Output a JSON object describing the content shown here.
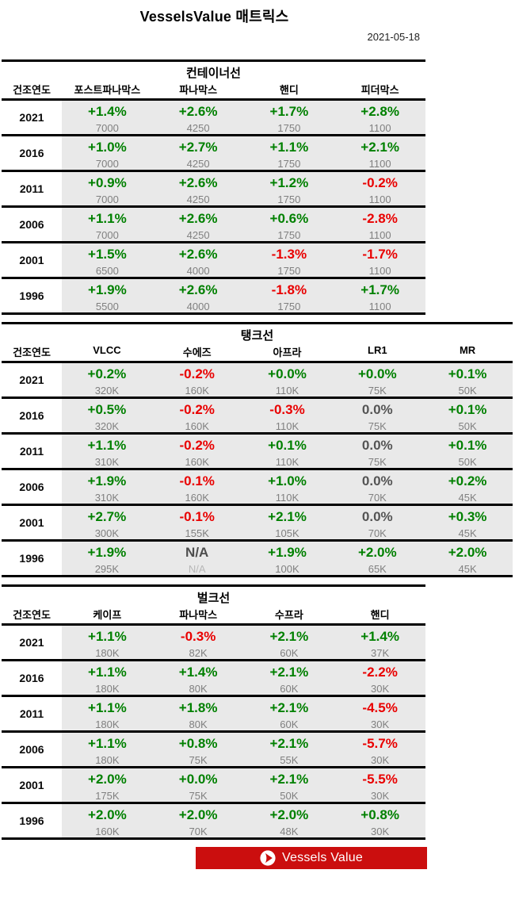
{
  "header": {
    "title": "VesselsValue 매트릭스",
    "date": "2021-05-18"
  },
  "colors": {
    "positive_green": "#008000",
    "negative_red": "#e90000",
    "zero_neutral": "#545454",
    "size_gray": "#808080",
    "na_light_gray": "#b8b8b8",
    "row_background": "#e9e9e9",
    "banner_red": "#cb0e0e"
  },
  "tables": [
    {
      "id": "container",
      "title": "컨테이너선",
      "year_label": "건조연도",
      "columns": [
        "포스트파나막스",
        "파나막스",
        "핸디",
        "피더막스"
      ],
      "rows": [
        {
          "year": "2021",
          "cells": [
            {
              "pct": "+1.4%",
              "tone": "green",
              "size": "7000"
            },
            {
              "pct": "+2.6%",
              "tone": "green",
              "size": "4250"
            },
            {
              "pct": "+1.7%",
              "tone": "green",
              "size": "1750"
            },
            {
              "pct": "+2.8%",
              "tone": "green",
              "size": "1100"
            }
          ]
        },
        {
          "year": "2016",
          "cells": [
            {
              "pct": "+1.0%",
              "tone": "green",
              "size": "7000"
            },
            {
              "pct": "+2.7%",
              "tone": "green",
              "size": "4250"
            },
            {
              "pct": "+1.1%",
              "tone": "green",
              "size": "1750"
            },
            {
              "pct": "+2.1%",
              "tone": "green",
              "size": "1100"
            }
          ]
        },
        {
          "year": "2011",
          "cells": [
            {
              "pct": "+0.9%",
              "tone": "green",
              "size": "7000"
            },
            {
              "pct": "+2.6%",
              "tone": "green",
              "size": "4250"
            },
            {
              "pct": "+1.2%",
              "tone": "green",
              "size": "1750"
            },
            {
              "pct": "-0.2%",
              "tone": "red",
              "size": "1100"
            }
          ]
        },
        {
          "year": "2006",
          "cells": [
            {
              "pct": "+1.1%",
              "tone": "green",
              "size": "7000"
            },
            {
              "pct": "+2.6%",
              "tone": "green",
              "size": "4250"
            },
            {
              "pct": "+0.6%",
              "tone": "green",
              "size": "1750"
            },
            {
              "pct": "-2.8%",
              "tone": "red",
              "size": "1100"
            }
          ]
        },
        {
          "year": "2001",
          "cells": [
            {
              "pct": "+1.5%",
              "tone": "green",
              "size": "6500"
            },
            {
              "pct": "+2.6%",
              "tone": "green",
              "size": "4000"
            },
            {
              "pct": "-1.3%",
              "tone": "red",
              "size": "1750"
            },
            {
              "pct": "-1.7%",
              "tone": "red",
              "size": "1100"
            }
          ]
        },
        {
          "year": "1996",
          "cells": [
            {
              "pct": "+1.9%",
              "tone": "green",
              "size": "5500"
            },
            {
              "pct": "+2.6%",
              "tone": "green",
              "size": "4000"
            },
            {
              "pct": "-1.8%",
              "tone": "red",
              "size": "1750"
            },
            {
              "pct": "+1.7%",
              "tone": "green",
              "size": "1100"
            }
          ]
        }
      ]
    },
    {
      "id": "tanker",
      "title": "탱크선",
      "year_label": "건조연도",
      "columns": [
        "VLCC",
        "수에즈",
        "아프라",
        "LR1",
        "MR"
      ],
      "rows": [
        {
          "year": "2021",
          "cells": [
            {
              "pct": "+0.2%",
              "tone": "green",
              "size": "320K"
            },
            {
              "pct": "-0.2%",
              "tone": "red",
              "size": "160K"
            },
            {
              "pct": "+0.0%",
              "tone": "green",
              "size": "110K"
            },
            {
              "pct": "+0.0%",
              "tone": "green",
              "size": "75K"
            },
            {
              "pct": "+0.1%",
              "tone": "green",
              "size": "50K"
            }
          ]
        },
        {
          "year": "2016",
          "cells": [
            {
              "pct": "+0.5%",
              "tone": "green",
              "size": "320K"
            },
            {
              "pct": "-0.2%",
              "tone": "red",
              "size": "160K"
            },
            {
              "pct": "-0.3%",
              "tone": "red",
              "size": "110K"
            },
            {
              "pct": "0.0%",
              "tone": "neutral",
              "size": "75K"
            },
            {
              "pct": "+0.1%",
              "tone": "green",
              "size": "50K"
            }
          ]
        },
        {
          "year": "2011",
          "cells": [
            {
              "pct": "+1.1%",
              "tone": "green",
              "size": "310K"
            },
            {
              "pct": "-0.2%",
              "tone": "red",
              "size": "160K"
            },
            {
              "pct": "+0.1%",
              "tone": "green",
              "size": "110K"
            },
            {
              "pct": "0.0%",
              "tone": "neutral",
              "size": "75K"
            },
            {
              "pct": "+0.1%",
              "tone": "green",
              "size": "50K"
            }
          ]
        },
        {
          "year": "2006",
          "cells": [
            {
              "pct": "+1.9%",
              "tone": "green",
              "size": "310K"
            },
            {
              "pct": "-0.1%",
              "tone": "red",
              "size": "160K"
            },
            {
              "pct": "+1.0%",
              "tone": "green",
              "size": "110K"
            },
            {
              "pct": "0.0%",
              "tone": "neutral",
              "size": "70K"
            },
            {
              "pct": "+0.2%",
              "tone": "green",
              "size": "45K"
            }
          ]
        },
        {
          "year": "2001",
          "cells": [
            {
              "pct": "+2.7%",
              "tone": "green",
              "size": "300K"
            },
            {
              "pct": "-0.1%",
              "tone": "red",
              "size": "155K"
            },
            {
              "pct": "+2.1%",
              "tone": "green",
              "size": "105K"
            },
            {
              "pct": "0.0%",
              "tone": "neutral",
              "size": "70K"
            },
            {
              "pct": "+0.3%",
              "tone": "green",
              "size": "45K"
            }
          ]
        },
        {
          "year": "1996",
          "cells": [
            {
              "pct": "+1.9%",
              "tone": "green",
              "size": "295K"
            },
            {
              "pct": "N/A",
              "tone": "na",
              "size": "N/A"
            },
            {
              "pct": "+1.9%",
              "tone": "green",
              "size": "100K"
            },
            {
              "pct": "+2.0%",
              "tone": "green",
              "size": "65K"
            },
            {
              "pct": "+2.0%",
              "tone": "green",
              "size": "45K"
            }
          ]
        }
      ]
    },
    {
      "id": "bulker",
      "title": "벌크선",
      "year_label": "건조연도",
      "columns": [
        "케이프",
        "파나막스",
        "수프라",
        "핸디"
      ],
      "rows": [
        {
          "year": "2021",
          "cells": [
            {
              "pct": "+1.1%",
              "tone": "green",
              "size": "180K"
            },
            {
              "pct": "-0.3%",
              "tone": "red",
              "size": "82K"
            },
            {
              "pct": "+2.1%",
              "tone": "green",
              "size": "60K"
            },
            {
              "pct": "+1.4%",
              "tone": "green",
              "size": "37K"
            }
          ]
        },
        {
          "year": "2016",
          "cells": [
            {
              "pct": "+1.1%",
              "tone": "green",
              "size": "180K"
            },
            {
              "pct": "+1.4%",
              "tone": "green",
              "size": "80K"
            },
            {
              "pct": "+2.1%",
              "tone": "green",
              "size": "60K"
            },
            {
              "pct": "-2.2%",
              "tone": "red",
              "size": "30K"
            }
          ]
        },
        {
          "year": "2011",
          "cells": [
            {
              "pct": "+1.1%",
              "tone": "green",
              "size": "180K"
            },
            {
              "pct": "+1.8%",
              "tone": "green",
              "size": "80K"
            },
            {
              "pct": "+2.1%",
              "tone": "green",
              "size": "60K"
            },
            {
              "pct": "-4.5%",
              "tone": "red",
              "size": "30K"
            }
          ]
        },
        {
          "year": "2006",
          "cells": [
            {
              "pct": "+1.1%",
              "tone": "green",
              "size": "180K"
            },
            {
              "pct": "+0.8%",
              "tone": "green",
              "size": "75K"
            },
            {
              "pct": "+2.1%",
              "tone": "green",
              "size": "55K"
            },
            {
              "pct": "-5.7%",
              "tone": "red",
              "size": "30K"
            }
          ]
        },
        {
          "year": "2001",
          "cells": [
            {
              "pct": "+2.0%",
              "tone": "green",
              "size": "175K"
            },
            {
              "pct": "+0.0%",
              "tone": "green",
              "size": "75K"
            },
            {
              "pct": "+2.1%",
              "tone": "green",
              "size": "50K"
            },
            {
              "pct": "-5.5%",
              "tone": "red",
              "size": "30K"
            }
          ]
        },
        {
          "year": "1996",
          "cells": [
            {
              "pct": "+2.0%",
              "tone": "green",
              "size": "160K"
            },
            {
              "pct": "+2.0%",
              "tone": "green",
              "size": "70K"
            },
            {
              "pct": "+2.0%",
              "tone": "green",
              "size": "48K"
            },
            {
              "pct": "+0.8%",
              "tone": "green",
              "size": "30K"
            }
          ]
        }
      ]
    }
  ],
  "footer": {
    "banner_label": "Vessels Value"
  }
}
